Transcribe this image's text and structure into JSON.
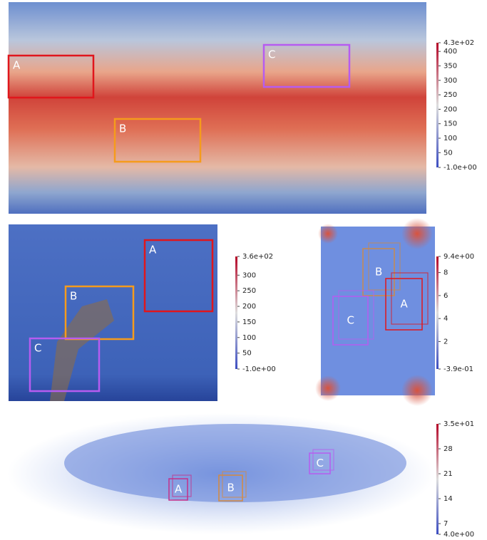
{
  "panels": [
    {
      "boxes": [
        {
          "label": "A"
        },
        {
          "label": "B"
        },
        {
          "label": "C"
        }
      ],
      "colorbar": {
        "labels": [
          "4.3e+02",
          "400",
          "350",
          "300",
          "250",
          "200",
          "150",
          "100",
          "50",
          "-1.0e+00"
        ]
      }
    },
    {
      "boxes": [
        {
          "label": "A"
        },
        {
          "label": "B"
        },
        {
          "label": "C"
        }
      ],
      "colorbar": {
        "labels": [
          "3.6e+02",
          "300",
          "250",
          "200",
          "150",
          "100",
          "50",
          "-1.0e+00"
        ]
      }
    },
    {
      "boxes": [
        {
          "label": "B"
        },
        {
          "label": "A"
        },
        {
          "label": "C"
        }
      ],
      "colorbar": {
        "labels": [
          "9.4e+00",
          "8",
          "6",
          "4",
          "2",
          "-3.9e-01"
        ]
      }
    },
    {
      "boxes": [
        {
          "label": "A"
        },
        {
          "label": "B"
        },
        {
          "label": "C"
        }
      ],
      "colorbar": {
        "labels": [
          "3.5e+01",
          "28",
          "21",
          "14",
          "7",
          "4.0e+00"
        ]
      }
    }
  ]
}
